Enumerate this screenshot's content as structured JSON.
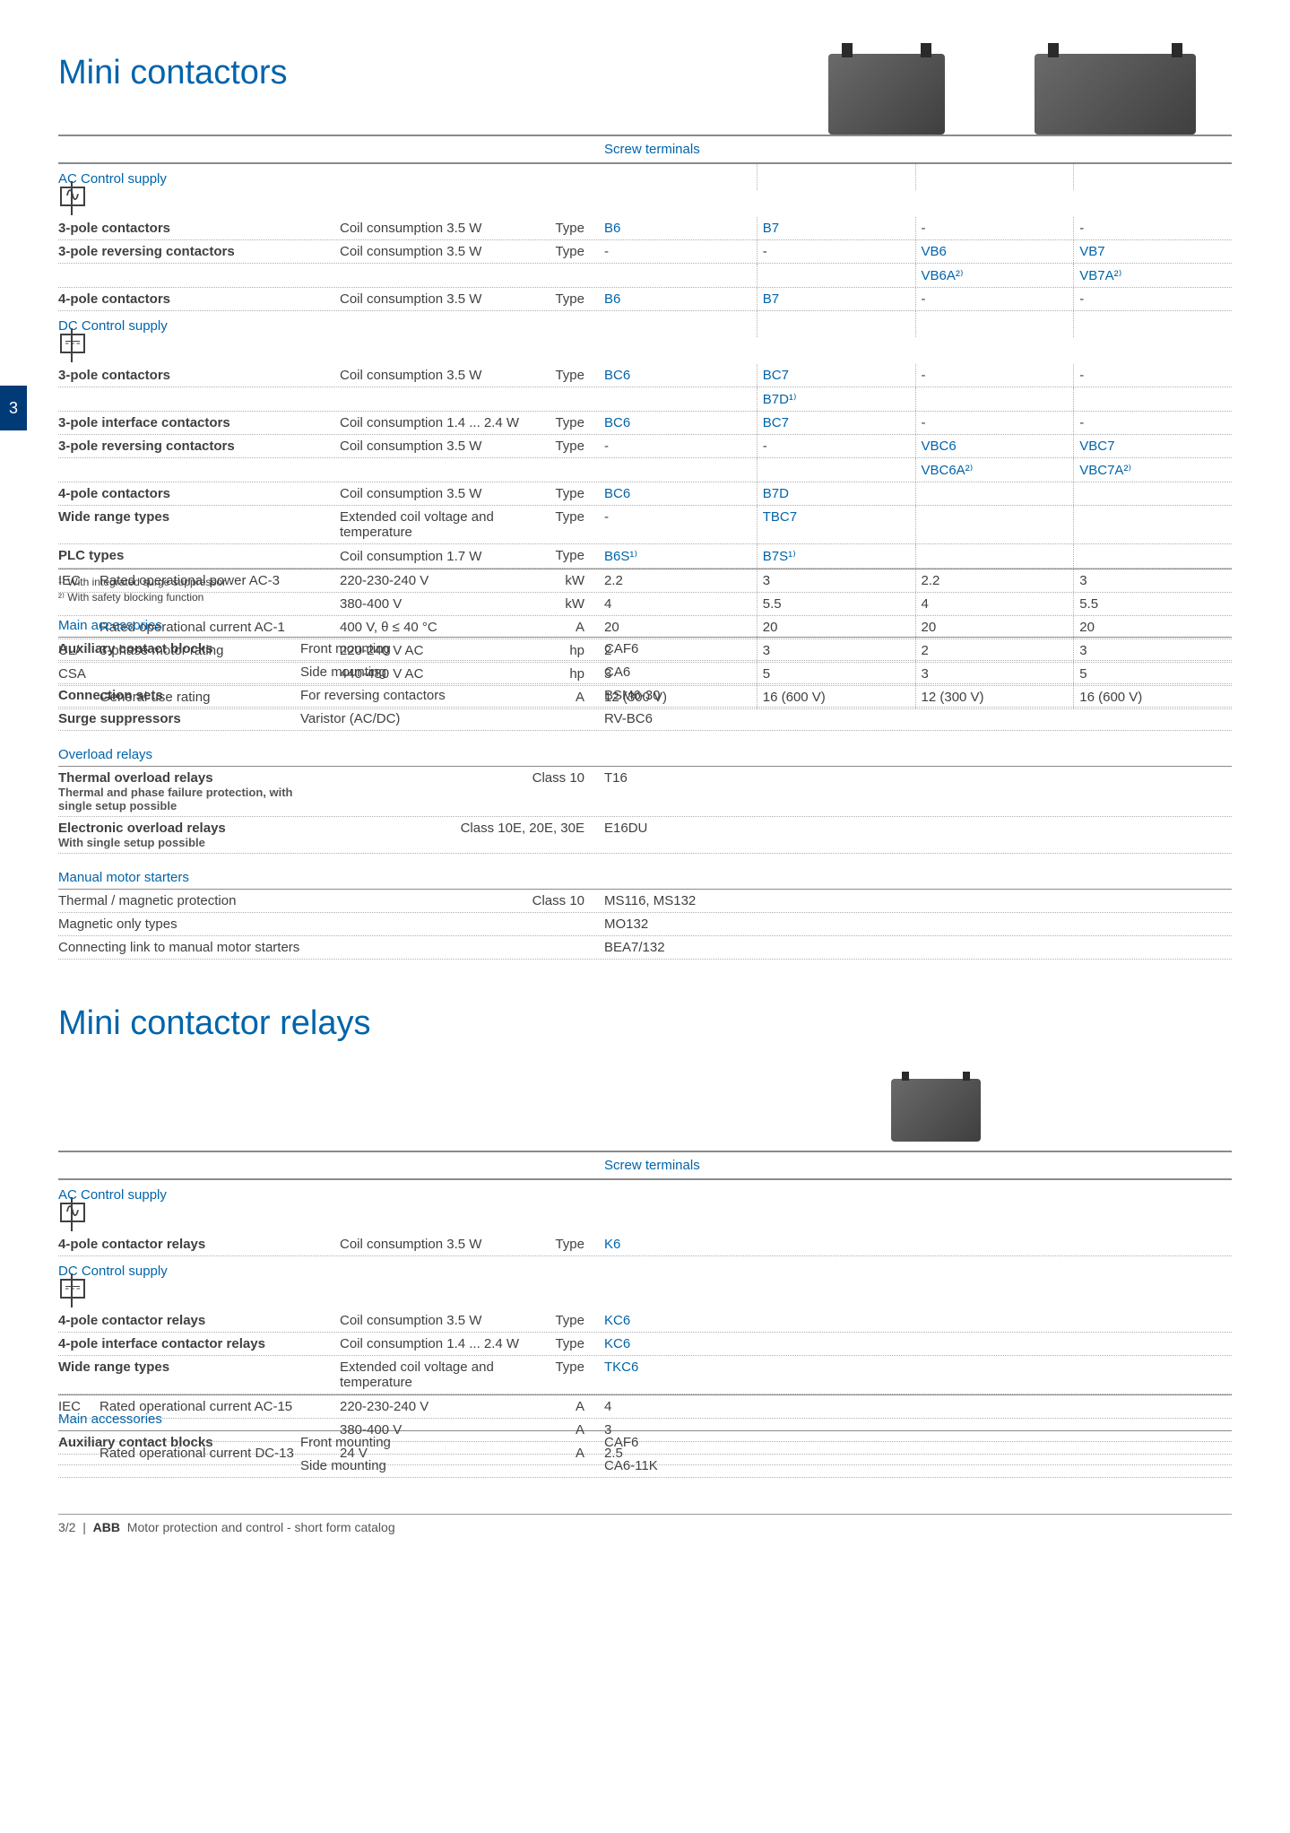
{
  "page": {
    "tab": "3",
    "title1": "Mini contactors",
    "title2": "Mini contactor relays",
    "col_header": "Screw terminals",
    "footer_pn": "3/2",
    "footer_brand": "ABB",
    "footer_text": "Motor protection and control - short form catalog"
  },
  "sec1": {
    "ac_hdr": "AC Control supply",
    "dc_hdr": "DC Control supply",
    "rows": {
      "r1": {
        "l": "3-pole contactors",
        "c": "Coil consumption 3.5 W",
        "u": "Type",
        "v": [
          "B6",
          "B7",
          "-",
          "-"
        ],
        "link": [
          1,
          1,
          0,
          0
        ],
        "bold": 1
      },
      "r2": {
        "l": "3-pole reversing contactors",
        "c": "Coil consumption 3.5 W",
        "u": "Type",
        "v": [
          "-",
          "-",
          "VB6",
          "VB7"
        ],
        "link": [
          0,
          0,
          1,
          1
        ],
        "bold": 1
      },
      "r2b": {
        "l": "",
        "c": "",
        "u": "",
        "v": [
          "",
          "",
          "VB6A²⁾",
          "VB7A²⁾"
        ],
        "link": [
          0,
          0,
          1,
          1
        ]
      },
      "r3": {
        "l": "4-pole contactors",
        "c": "Coil consumption 3.5 W",
        "u": "Type",
        "v": [
          "B6",
          "B7",
          "-",
          "-"
        ],
        "link": [
          1,
          1,
          0,
          0
        ],
        "bold": 1
      },
      "r4": {
        "l": "3-pole contactors",
        "c": "Coil consumption 3.5 W",
        "u": "Type",
        "v": [
          "BC6",
          "BC7",
          "-",
          "-"
        ],
        "link": [
          1,
          1,
          0,
          0
        ],
        "bold": 1
      },
      "r4b": {
        "l": "",
        "c": "",
        "u": "",
        "v": [
          "",
          "B7D¹⁾",
          "",
          ""
        ],
        "link": [
          0,
          1,
          0,
          0
        ]
      },
      "r5": {
        "l": "3-pole interface contactors",
        "c": "Coil consumption 1.4 ... 2.4 W",
        "u": "Type",
        "v": [
          "BC6",
          "BC7",
          "-",
          "-"
        ],
        "link": [
          1,
          1,
          0,
          0
        ],
        "bold": 1
      },
      "r6": {
        "l": "3-pole reversing contactors",
        "c": "Coil consumption 3.5 W",
        "u": "Type",
        "v": [
          "-",
          "-",
          "VBC6",
          "VBC7"
        ],
        "link": [
          0,
          0,
          1,
          1
        ],
        "bold": 1
      },
      "r6b": {
        "l": "",
        "c": "",
        "u": "",
        "v": [
          "",
          "",
          "VBC6A²⁾",
          "VBC7A²⁾"
        ],
        "link": [
          0,
          0,
          1,
          1
        ]
      },
      "r7": {
        "l": "4-pole contactors",
        "c": "Coil consumption 3.5 W",
        "u": "Type",
        "v": [
          "BC6",
          "B7D",
          "",
          ""
        ],
        "link": [
          1,
          1,
          0,
          0
        ],
        "bold": 1
      },
      "r8": {
        "l": "Wide range types",
        "c": "Extended coil voltage and temperature",
        "u": "Type",
        "v": [
          "-",
          "TBC7",
          "",
          ""
        ],
        "link": [
          0,
          1,
          0,
          0
        ],
        "bold": 1
      },
      "r9": {
        "l": "PLC types",
        "c": "Coil consumption 1.7 W",
        "u": "Type",
        "v": [
          "B6S¹⁾",
          "B7S¹⁾",
          "",
          ""
        ],
        "link": [
          1,
          1,
          0,
          0
        ],
        "bold": 1
      },
      "r10": {
        "ll": "IEC",
        "l": "Rated operational power AC-3",
        "c": "220-230-240 V",
        "u": "kW",
        "v": [
          "2.2",
          "3",
          "2.2",
          "3"
        ]
      },
      "r11": {
        "ll": "",
        "l": "",
        "c": "380-400 V",
        "u": "kW",
        "v": [
          "4",
          "5.5",
          "4",
          "5.5"
        ]
      },
      "r12": {
        "ll": "",
        "l": "Rated operational current AC-1",
        "c": "400 V, θ ≤ 40 °C",
        "u": "A",
        "v": [
          "20",
          "20",
          "20",
          "20"
        ]
      },
      "r13": {
        "ll": "UL/",
        "l": "3-phase motor rating",
        "c": "220-240 V AC",
        "u": "hp",
        "v": [
          "2",
          "3",
          "2",
          "3"
        ]
      },
      "r14": {
        "ll": "CSA",
        "l": "",
        "c": "440-480 V AC",
        "u": "hp",
        "v": [
          "3",
          "5",
          "3",
          "5"
        ]
      },
      "r15": {
        "ll": "",
        "l": "General use rating",
        "c": "",
        "u": "A",
        "v": [
          "12 (300 V)",
          "16 (600 V)",
          "12 (300 V)",
          "16 (600 V)"
        ]
      }
    },
    "fn1": "¹⁾ With integrated surge suppressor",
    "fn2": "²⁾ With safety blocking function"
  },
  "acc1": {
    "hdr": "Main accessories",
    "rows": {
      "a1": {
        "l": "Auxiliary contact blocks",
        "c": "Front mounting",
        "v": "CAF6",
        "bold": 1
      },
      "a2": {
        "l": "",
        "c": "Side mounting",
        "v": "CA6"
      },
      "a3": {
        "l": "Connection sets",
        "c": "For reversing contactors",
        "v": "BSM6-30",
        "bold": 1
      },
      "a4": {
        "l": "Surge suppressors",
        "c": "Varistor (AC/DC)",
        "v": "RV-BC6",
        "bold": 1
      }
    }
  },
  "ovl": {
    "hdr": "Overload relays",
    "rows": {
      "o1": {
        "l": "Thermal overload relays",
        "s": "Thermal and phase failure protection, with single setup possible",
        "c": "Class 10",
        "v": "T16",
        "bold": 1
      },
      "o2": {
        "l": "Electronic overload relays",
        "s": "With single setup possible",
        "c": "Class 10E, 20E, 30E",
        "v": "E16DU",
        "bold": 1
      }
    }
  },
  "mms": {
    "hdr": "Manual motor starters",
    "rows": {
      "m1": {
        "l": "Thermal / magnetic protection",
        "c": "Class 10",
        "v": "MS116, MS132"
      },
      "m2": {
        "l": "Magnetic only types",
        "c": "",
        "v": "MO132"
      },
      "m3": {
        "l": "Connecting link to manual motor starters",
        "c": "",
        "v": "BEA7/132"
      }
    }
  },
  "sec2": {
    "rows": {
      "r1": {
        "l": "4-pole contactor relays",
        "c": "Coil consumption 3.5 W",
        "u": "Type",
        "v": "K6",
        "link": 1,
        "bold": 1
      },
      "r2": {
        "l": "4-pole contactor relays",
        "c": "Coil consumption 3.5 W",
        "u": "Type",
        "v": "KC6",
        "link": 1,
        "bold": 1
      },
      "r3": {
        "l": "4-pole interface contactor relays",
        "c": "Coil consumption 1.4 ... 2.4 W",
        "u": "Type",
        "v": "KC6",
        "link": 1,
        "bold": 1
      },
      "r4": {
        "l": "Wide range types",
        "c": "Extended coil voltage and temperature",
        "u": "Type",
        "v": "TKC6",
        "link": 1,
        "bold": 1
      },
      "r5": {
        "ll": "IEC",
        "l": "Rated operational current AC-15",
        "c": "220-230-240 V",
        "u": "A",
        "v": "4"
      },
      "r6": {
        "ll": "",
        "l": "",
        "c": "380-400 V",
        "u": "A",
        "v": "3"
      },
      "r7": {
        "ll": "",
        "l": "Rated operational current DC-13",
        "c": "24 V",
        "u": "A",
        "v": "2.5"
      }
    }
  },
  "acc2": {
    "hdr": "Main accessories",
    "rows": {
      "a1": {
        "l": "Auxiliary contact blocks",
        "c": "Front mounting",
        "v": "CAF6",
        "bold": 1
      },
      "a2": {
        "l": "",
        "c": "Side mounting",
        "v": "CA6-11K"
      }
    }
  }
}
